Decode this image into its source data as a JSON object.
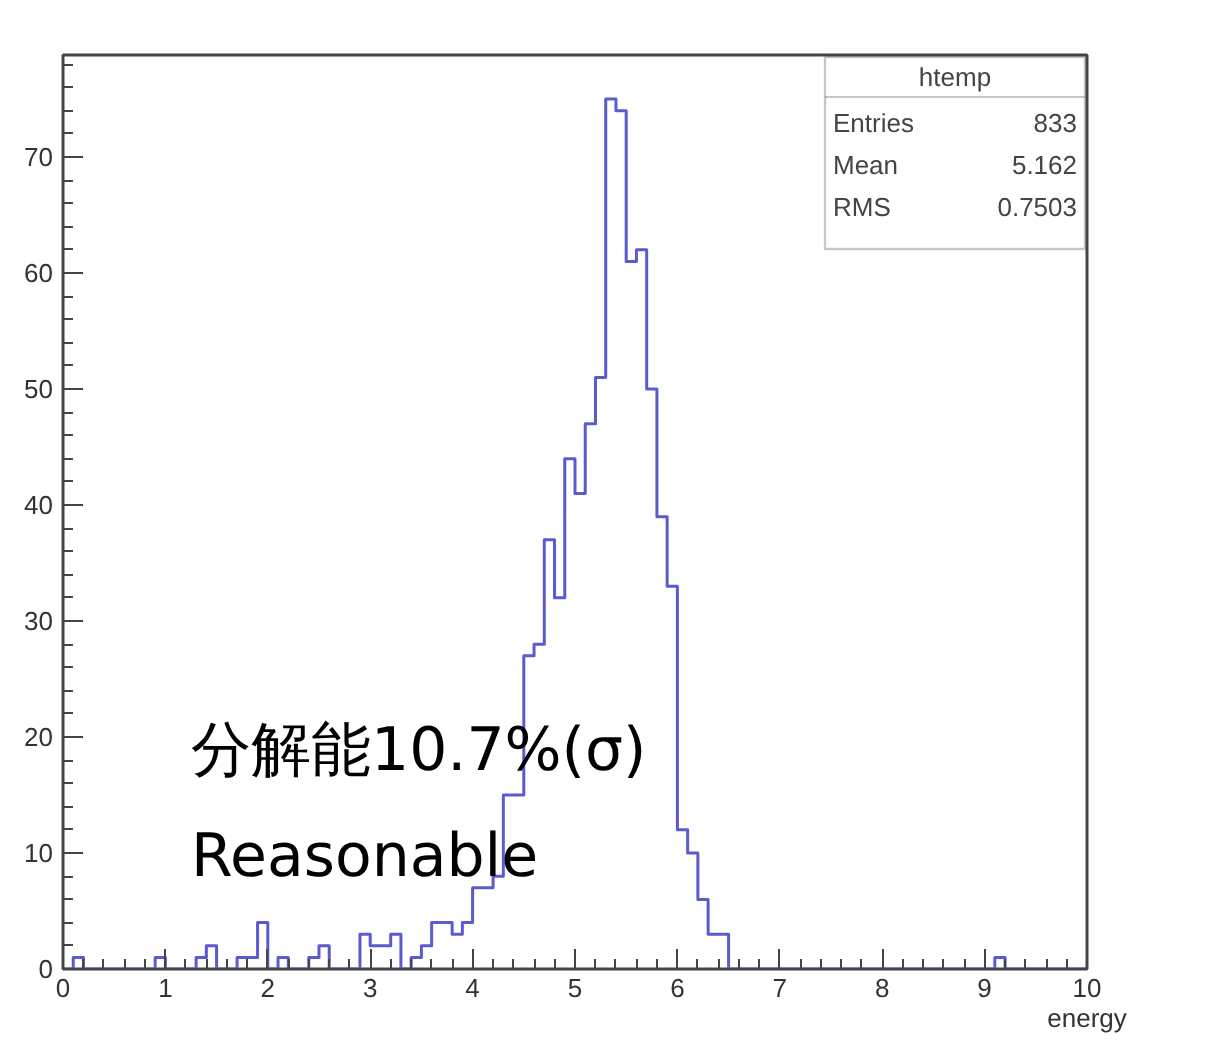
{
  "chart_data": {
    "type": "histogram",
    "xlabel": "energy",
    "bins": [
      0,
      0.1,
      0.2,
      0.3,
      0.4,
      0.5,
      0.6,
      0.7,
      0.8,
      0.9,
      1,
      1.1,
      1.2,
      1.3,
      1.4,
      1.5,
      1.6,
      1.7,
      1.8,
      1.9,
      2,
      2.1,
      2.2,
      2.3,
      2.4,
      2.5,
      2.6,
      2.7,
      2.8,
      2.9,
      3,
      3.1,
      3.2,
      3.3,
      3.4,
      3.5,
      3.6,
      3.7,
      3.8,
      3.9,
      4,
      4.1,
      4.2,
      4.3,
      4.4,
      4.5,
      4.6,
      4.7,
      4.8,
      4.9,
      5,
      5.1,
      5.2,
      5.3,
      5.4,
      5.5,
      5.6,
      5.7,
      5.8,
      5.9,
      6,
      6.1,
      6.2,
      6.3,
      6.4,
      6.5,
      6.6,
      6.7,
      6.8,
      6.9,
      7,
      7.1,
      7.2,
      7.3,
      7.4,
      7.5,
      7.6,
      7.7,
      7.8,
      7.9,
      8,
      8.1,
      8.2,
      8.3,
      8.4,
      8.5,
      8.6,
      8.7,
      8.8,
      8.9,
      9,
      9.1,
      9.2,
      9.3,
      9.4,
      9.5,
      9.6,
      9.7,
      9.8,
      9.9,
      10
    ],
    "values": [
      0,
      1,
      0,
      0,
      0,
      0,
      0,
      0,
      0,
      1,
      0,
      0,
      0,
      1,
      2,
      0,
      0,
      1,
      1,
      4,
      0,
      1,
      0,
      0,
      1,
      2,
      0,
      0,
      0,
      3,
      2,
      2,
      3,
      0,
      1,
      2,
      4,
      4,
      3,
      4,
      7,
      7,
      8,
      15,
      15,
      27,
      28,
      37,
      32,
      44,
      41,
      47,
      51,
      75,
      74,
      61,
      62,
      50,
      39,
      33,
      12,
      10,
      6,
      3,
      3,
      0,
      0,
      0,
      0,
      0,
      0,
      0,
      0,
      0,
      0,
      0,
      0,
      0,
      0,
      0,
      0,
      0,
      0,
      0,
      0,
      0,
      0,
      0,
      0,
      0,
      0,
      1,
      0,
      0,
      0,
      0,
      0,
      0,
      0,
      0
    ],
    "color": "#5b5bd0",
    "xlim": [
      0,
      10
    ],
    "ylim": [
      0,
      78.8
    ],
    "xticks": [
      0,
      1,
      2,
      3,
      4,
      5,
      6,
      7,
      8,
      9,
      10
    ],
    "yticks": [
      0,
      10,
      20,
      30,
      40,
      50,
      60,
      70
    ],
    "grid": false,
    "annotations": [
      "htemp",
      "Entries",
      "833",
      "Mean",
      "5.162",
      "RMS",
      "0.7503",
      "分解能10.7%(σ)",
      "Reasonable"
    ]
  }
}
